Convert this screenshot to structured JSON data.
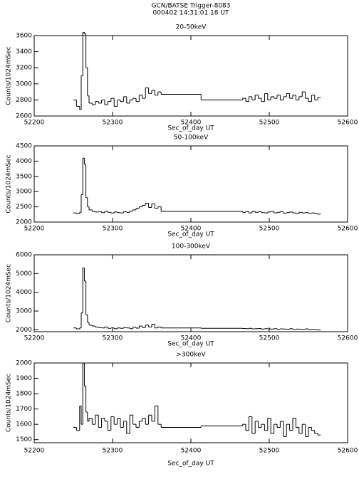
{
  "header": {
    "title": "GCN/BATSE  Trigger-8083",
    "subtitle": "000402 14:31:01.18 UT"
  },
  "chart_data": [
    {
      "type": "line",
      "title": "20-50keV",
      "xlabel": "Sec_of_day UT",
      "ylabel": "Counts/1024mSec",
      "color": "#000000",
      "x": [
        52250,
        52254,
        52258,
        52260,
        52262,
        52264,
        52266,
        52268,
        52270,
        52274,
        52278,
        52282,
        52286,
        52290,
        52294,
        52298,
        52302,
        52306,
        52310,
        52314,
        52318,
        52322,
        52326,
        52330,
        52334,
        52338,
        52342,
        52346,
        52350,
        52354,
        52358,
        52362,
        52413,
        52466,
        52470,
        52474,
        52478,
        52482,
        52486,
        52490,
        52494,
        52498,
        52502,
        52506,
        52510,
        52514,
        52518,
        52522,
        52526,
        52530,
        52534,
        52538,
        52542,
        52546,
        52550,
        52554,
        52558,
        52562
      ],
      "values": [
        2800,
        2720,
        2680,
        3100,
        3640,
        3620,
        3200,
        2850,
        2760,
        2740,
        2780,
        2760,
        2800,
        2740,
        2780,
        2820,
        2720,
        2800,
        2780,
        2840,
        2760,
        2800,
        2820,
        2780,
        2860,
        2820,
        2950,
        2880,
        2920,
        2860,
        2900,
        2870,
        2800,
        2820,
        2780,
        2840,
        2800,
        2860,
        2820,
        2780,
        2880,
        2800,
        2840,
        2820,
        2860,
        2800,
        2840,
        2880,
        2820,
        2860,
        2800,
        2840,
        2900,
        2820,
        2780,
        2860,
        2800,
        2830
      ],
      "xlim": [
        52200,
        52600
      ],
      "xticks": [
        52200,
        52300,
        52400,
        52500,
        52600
      ],
      "ylim": [
        2600,
        3600
      ],
      "yticks": [
        2600,
        2800,
        3000,
        3200,
        3400,
        3600
      ]
    },
    {
      "type": "line",
      "title": "50-100keV",
      "xlabel": "Sec_of_day UT",
      "ylabel": "Counts/1024mSec",
      "color": "#000000",
      "x": [
        52250,
        52254,
        52258,
        52260,
        52262,
        52264,
        52266,
        52268,
        52270,
        52274,
        52278,
        52282,
        52286,
        52290,
        52294,
        52298,
        52302,
        52306,
        52310,
        52314,
        52318,
        52322,
        52326,
        52330,
        52334,
        52338,
        52342,
        52346,
        52350,
        52354,
        52358,
        52362,
        52413,
        52466,
        52470,
        52474,
        52478,
        52482,
        52486,
        52490,
        52494,
        52498,
        52502,
        52506,
        52510,
        52514,
        52518,
        52522,
        52526,
        52530,
        52534,
        52538,
        52542,
        52546,
        52550,
        52554,
        52558,
        52562
      ],
      "values": [
        2300,
        2280,
        2320,
        2900,
        4100,
        3900,
        2800,
        2500,
        2400,
        2350,
        2330,
        2340,
        2310,
        2350,
        2320,
        2300,
        2330,
        2310,
        2300,
        2340,
        2320,
        2360,
        2400,
        2450,
        2500,
        2550,
        2620,
        2480,
        2600,
        2450,
        2500,
        2350,
        2350,
        2320,
        2340,
        2300,
        2350,
        2320,
        2340,
        2310,
        2300,
        2330,
        2350,
        2300,
        2320,
        2340,
        2290,
        2310,
        2330,
        2300,
        2280,
        2320,
        2300,
        2310,
        2290,
        2300,
        2280,
        2260
      ],
      "xlim": [
        52200,
        52600
      ],
      "xticks": [
        52200,
        52300,
        52400,
        52500,
        52600
      ],
      "ylim": [
        2000,
        4500
      ],
      "yticks": [
        2000,
        2500,
        3000,
        3500,
        4000,
        4500
      ]
    },
    {
      "type": "line",
      "title": "100-300keV",
      "xlabel": "Sec_of_day UT",
      "ylabel": "Counts/1024mSec",
      "color": "#000000",
      "x": [
        52250,
        52254,
        52258,
        52260,
        52262,
        52264,
        52266,
        52268,
        52270,
        52274,
        52278,
        52282,
        52286,
        52290,
        52294,
        52298,
        52302,
        52306,
        52310,
        52314,
        52318,
        52322,
        52326,
        52330,
        52334,
        52338,
        52342,
        52346,
        52350,
        52354,
        52358,
        52362,
        52413,
        52466,
        52470,
        52474,
        52478,
        52482,
        52486,
        52490,
        52494,
        52498,
        52502,
        52506,
        52510,
        52514,
        52518,
        52522,
        52526,
        52530,
        52534,
        52538,
        52542,
        52546,
        52550,
        52554,
        52558,
        52562
      ],
      "values": [
        2100,
        2050,
        2100,
        2900,
        5300,
        4600,
        2800,
        2400,
        2250,
        2200,
        2150,
        2120,
        2100,
        2150,
        2080,
        2100,
        2060,
        2100,
        2080,
        2120,
        2100,
        2060,
        2140,
        2090,
        2200,
        2120,
        2250,
        2150,
        2300,
        2100,
        2150,
        2100,
        2080,
        2070,
        2060,
        2080,
        2050,
        2060,
        2070,
        2040,
        2060,
        2050,
        2040,
        2060,
        2030,
        2050,
        2040,
        2030,
        2060,
        2020,
        2040,
        2030,
        2020,
        2050,
        2000,
        2020,
        2010,
        1990
      ],
      "xlim": [
        52200,
        52600
      ],
      "xticks": [
        52200,
        52300,
        52400,
        52500,
        52600
      ],
      "ylim": [
        1900,
        6000
      ],
      "yticks": [
        2000,
        3000,
        4000,
        5000,
        6000
      ]
    },
    {
      "type": "line",
      "title": ">300keV",
      "xlabel": "Sec_of_day UT",
      "ylabel": "Counts/1024mSec",
      "color": "#000000",
      "x": [
        52250,
        52254,
        52258,
        52260,
        52262,
        52264,
        52266,
        52268,
        52270,
        52274,
        52278,
        52282,
        52286,
        52290,
        52294,
        52298,
        52302,
        52306,
        52310,
        52314,
        52318,
        52322,
        52326,
        52330,
        52334,
        52338,
        52342,
        52346,
        52350,
        52354,
        52358,
        52362,
        52413,
        52466,
        52470,
        52474,
        52478,
        52482,
        52486,
        52490,
        52494,
        52498,
        52502,
        52506,
        52510,
        52514,
        52518,
        52522,
        52526,
        52530,
        52534,
        52538,
        52542,
        52546,
        52550,
        52554,
        52558,
        52562
      ],
      "values": [
        1580,
        1560,
        1720,
        1600,
        2000,
        1850,
        1680,
        1620,
        1640,
        1600,
        1660,
        1580,
        1640,
        1620,
        1560,
        1650,
        1600,
        1640,
        1580,
        1620,
        1540,
        1660,
        1600,
        1580,
        1620,
        1640,
        1600,
        1660,
        1620,
        1720,
        1600,
        1580,
        1590,
        1600,
        1560,
        1650,
        1540,
        1620,
        1580,
        1600,
        1560,
        1640,
        1540,
        1600,
        1580,
        1620,
        1520,
        1600,
        1560,
        1640,
        1580,
        1540,
        1600,
        1520,
        1580,
        1560,
        1540,
        1530
      ],
      "xlim": [
        52200,
        52600
      ],
      "xticks": [
        52200,
        52300,
        52400,
        52500,
        52600
      ],
      "ylim": [
        1480,
        2000
      ],
      "yticks": [
        1500,
        1600,
        1700,
        1800,
        1900,
        2000
      ]
    }
  ]
}
